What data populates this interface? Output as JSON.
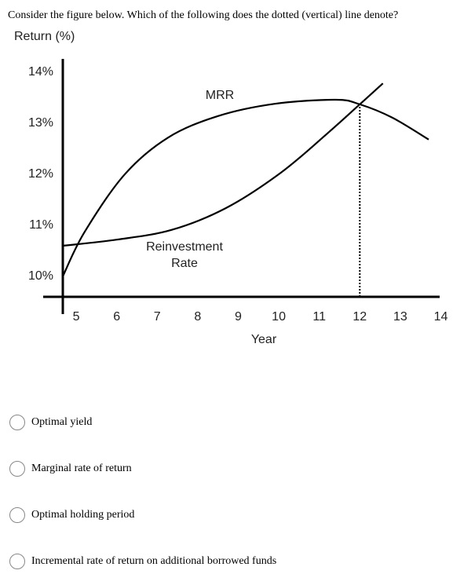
{
  "question": "Consider the figure below. Which of the following does the dotted (vertical) line denote?",
  "chart_data": {
    "type": "line",
    "ylabel": "Return (%)",
    "xlabel": "Year",
    "xlim": [
      4.67,
      14.3
    ],
    "xticks": [
      5,
      6,
      7,
      8,
      9,
      10,
      11,
      12,
      13,
      14
    ],
    "ylim": [
      9.6,
      14.26
    ],
    "yticks": [
      {
        "value": 10,
        "label": "10%"
      },
      {
        "value": 11,
        "label": "11%"
      },
      {
        "value": 12,
        "label": "12%"
      },
      {
        "value": 13,
        "label": "13%"
      },
      {
        "value": 14,
        "label": "14%"
      }
    ],
    "series": [
      {
        "name": "MRR",
        "color": "#000000",
        "x": [
          4.67,
          5.2,
          6.2,
          7.27,
          8.5,
          9.9,
          11.4,
          12.0,
          12.8,
          13.7
        ],
        "values": [
          10.0,
          10.86,
          12.0,
          12.72,
          13.14,
          13.38,
          13.46,
          13.37,
          13.11,
          12.68
        ]
      },
      {
        "name": "Reinvestment Rate",
        "color": "#000000",
        "x": [
          4.67,
          6.0,
          7.35,
          8.7,
          10.05,
          11.2,
          12.0,
          12.57
        ],
        "values": [
          10.6,
          10.72,
          10.91,
          11.34,
          12.03,
          12.8,
          13.37,
          13.78
        ]
      }
    ],
    "vline": {
      "x": 12.0,
      "y": 13.37
    }
  },
  "options": [
    "Optimal yield",
    "Marginal rate of return",
    "Optimal holding period",
    "Incremental rate of return on additional borrowed funds"
  ]
}
